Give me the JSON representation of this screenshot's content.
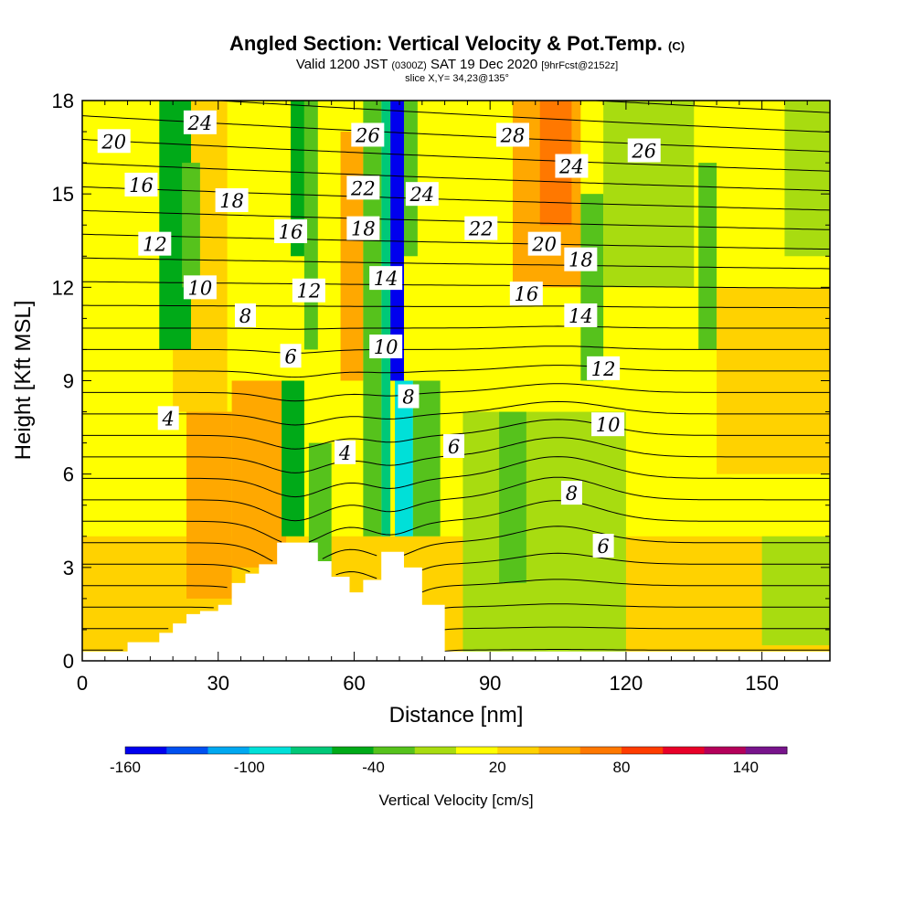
{
  "header": {
    "title_main": "Angled Section: Vertical Velocity & Pot.Temp.",
    "title_unit": "(C)",
    "line2_a": "Valid 1200 JST",
    "line2_b": "(0300Z)",
    "line2_c": "SAT 19 Dec 2020",
    "line2_d": "[9hrFcst@2152z]",
    "line3": "slice X,Y= 34,23@135°"
  },
  "chart_data": {
    "type": "heatmap",
    "xlabel": "Distance [nm]",
    "ylabel": "Height [Kft MSL]",
    "xlim": [
      0,
      165
    ],
    "ylim": [
      0,
      18
    ],
    "x_ticks": [
      0,
      30,
      60,
      90,
      120,
      150
    ],
    "y_ticks": [
      0,
      3,
      6,
      9,
      12,
      15,
      18
    ],
    "colorbar": {
      "label": "Vertical Velocity [cm/s]",
      "tick_values": [
        -160,
        -100,
        -40,
        20,
        80,
        140
      ],
      "tick_labels": [
        "-160",
        "-100",
        "-40",
        "20",
        "80",
        "140"
      ],
      "range": [
        -160,
        160
      ],
      "colors": [
        "#0000ee",
        "#0050f0",
        "#00a8f0",
        "#00e0d8",
        "#00c878",
        "#00aa18",
        "#56c21c",
        "#a8dc10",
        "#ffff00",
        "#ffd200",
        "#ffa800",
        "#ff7800",
        "#ff3c00",
        "#e80028",
        "#b4005a",
        "#78148c"
      ]
    },
    "terrain": [
      {
        "x": 0,
        "h": 0.3
      },
      {
        "x": 10,
        "h": 0.6
      },
      {
        "x": 17,
        "h": 0.9
      },
      {
        "x": 20,
        "h": 1.2
      },
      {
        "x": 23,
        "h": 1.5
      },
      {
        "x": 26,
        "h": 1.6
      },
      {
        "x": 30,
        "h": 1.8
      },
      {
        "x": 33,
        "h": 2.5
      },
      {
        "x": 36,
        "h": 2.8
      },
      {
        "x": 39,
        "h": 3.1
      },
      {
        "x": 43,
        "h": 3.8
      },
      {
        "x": 47,
        "h": 3.8
      },
      {
        "x": 52,
        "h": 3.2
      },
      {
        "x": 55,
        "h": 2.7
      },
      {
        "x": 59,
        "h": 2.2
      },
      {
        "x": 62,
        "h": 2.6
      },
      {
        "x": 66,
        "h": 3.5
      },
      {
        "x": 71,
        "h": 3.0
      },
      {
        "x": 75,
        "h": 1.8
      },
      {
        "x": 80,
        "h": 0.3
      }
    ],
    "velocity_cells": [
      {
        "x0": 0,
        "x1": 165,
        "y0": 0,
        "y1": 18,
        "v": 10
      },
      {
        "x0": 0,
        "x1": 165,
        "y0": 0,
        "y1": 4,
        "v": 25
      },
      {
        "x0": 20,
        "x1": 32,
        "y0": 8,
        "y1": 18,
        "v": 30
      },
      {
        "x0": 17,
        "x1": 24,
        "y0": 10,
        "y1": 18,
        "v": -50
      },
      {
        "x0": 22,
        "x1": 26,
        "y0": 12,
        "y1": 16,
        "v": -25
      },
      {
        "x0": 23,
        "x1": 33,
        "y0": 2,
        "y1": 8,
        "v": 45
      },
      {
        "x0": 33,
        "x1": 45,
        "y0": 3,
        "y1": 9,
        "v": 45
      },
      {
        "x0": 44,
        "x1": 49,
        "y0": 4,
        "y1": 9,
        "v": -45
      },
      {
        "x0": 46,
        "x1": 49,
        "y0": 13,
        "y1": 18,
        "v": -55
      },
      {
        "x0": 49,
        "x1": 52,
        "y0": 10,
        "y1": 18,
        "v": -30
      },
      {
        "x0": 50,
        "x1": 55,
        "y0": 2.5,
        "y1": 7,
        "v": -30
      },
      {
        "x0": 57,
        "x1": 62,
        "y0": 9,
        "y1": 17,
        "v": 45
      },
      {
        "x0": 62,
        "x1": 66,
        "y0": 4,
        "y1": 18,
        "v": -25
      },
      {
        "x0": 66,
        "x1": 68,
        "y0": 4,
        "y1": 18,
        "v": -75
      },
      {
        "x0": 68,
        "x1": 71,
        "y0": 9,
        "y1": 18,
        "v": -145
      },
      {
        "x0": 69,
        "x1": 73,
        "y0": 4,
        "y1": 9,
        "v": -95
      },
      {
        "x0": 71,
        "x1": 74,
        "y0": 13,
        "y1": 18,
        "v": -40
      },
      {
        "x0": 73,
        "x1": 79,
        "y0": 4,
        "y1": 9,
        "v": -30
      },
      {
        "x0": 79,
        "x1": 95,
        "y0": 9,
        "y1": 18,
        "v": 5
      },
      {
        "x0": 84,
        "x1": 120,
        "y0": 0,
        "y1": 8,
        "v": -15
      },
      {
        "x0": 92,
        "x1": 98,
        "y0": 2.5,
        "y1": 8,
        "v": -40
      },
      {
        "x0": 95,
        "x1": 110,
        "y0": 12,
        "y1": 18,
        "v": 50
      },
      {
        "x0": 101,
        "x1": 108,
        "y0": 14,
        "y1": 18,
        "v": 70
      },
      {
        "x0": 110,
        "x1": 115,
        "y0": 9,
        "y1": 15,
        "v": -35
      },
      {
        "x0": 115,
        "x1": 135,
        "y0": 12,
        "y1": 18,
        "v": -15
      },
      {
        "x0": 136,
        "x1": 140,
        "y0": 10,
        "y1": 16,
        "v": -35
      },
      {
        "x0": 140,
        "x1": 165,
        "y0": 6,
        "y1": 12,
        "v": 20
      },
      {
        "x0": 155,
        "x1": 165,
        "y0": 13,
        "y1": 18,
        "v": -15
      },
      {
        "x0": 150,
        "x1": 165,
        "y0": 0.5,
        "y1": 4,
        "v": -15
      }
    ],
    "isentrope_labels": [
      {
        "text": "20",
        "x": 7,
        "y": 16.7
      },
      {
        "text": "24",
        "x": 26,
        "y": 17.3
      },
      {
        "text": "26",
        "x": 63,
        "y": 16.9
      },
      {
        "text": "28",
        "x": 95,
        "y": 16.9
      },
      {
        "text": "24",
        "x": 108,
        "y": 15.9
      },
      {
        "text": "26",
        "x": 124,
        "y": 16.4
      },
      {
        "text": "16",
        "x": 13,
        "y": 15.3
      },
      {
        "text": "18",
        "x": 33,
        "y": 14.8
      },
      {
        "text": "22",
        "x": 62,
        "y": 15.2
      },
      {
        "text": "24",
        "x": 75,
        "y": 15.0
      },
      {
        "text": "22",
        "x": 88,
        "y": 13.9
      },
      {
        "text": "16",
        "x": 46,
        "y": 13.8
      },
      {
        "text": "18",
        "x": 62,
        "y": 13.9
      },
      {
        "text": "20",
        "x": 102,
        "y": 13.4
      },
      {
        "text": "12",
        "x": 16,
        "y": 13.4
      },
      {
        "text": "18",
        "x": 110,
        "y": 12.9
      },
      {
        "text": "10",
        "x": 26,
        "y": 12.0
      },
      {
        "text": "12",
        "x": 50,
        "y": 11.9
      },
      {
        "text": "14",
        "x": 67,
        "y": 12.3
      },
      {
        "text": "16",
        "x": 98,
        "y": 11.8
      },
      {
        "text": "8",
        "x": 36,
        "y": 11.1
      },
      {
        "text": "14",
        "x": 110,
        "y": 11.1
      },
      {
        "text": "10",
        "x": 67,
        "y": 10.1
      },
      {
        "text": "6",
        "x": 46,
        "y": 9.8
      },
      {
        "text": "12",
        "x": 115,
        "y": 9.4
      },
      {
        "text": "8",
        "x": 72,
        "y": 8.5
      },
      {
        "text": "4",
        "x": 19,
        "y": 7.8
      },
      {
        "text": "10",
        "x": 116,
        "y": 7.6
      },
      {
        "text": "6",
        "x": 82,
        "y": 6.9
      },
      {
        "text": "4",
        "x": 58,
        "y": 6.7
      },
      {
        "text": "8",
        "x": 108,
        "y": 5.4
      },
      {
        "text": "6",
        "x": 115,
        "y": 3.7
      }
    ]
  }
}
